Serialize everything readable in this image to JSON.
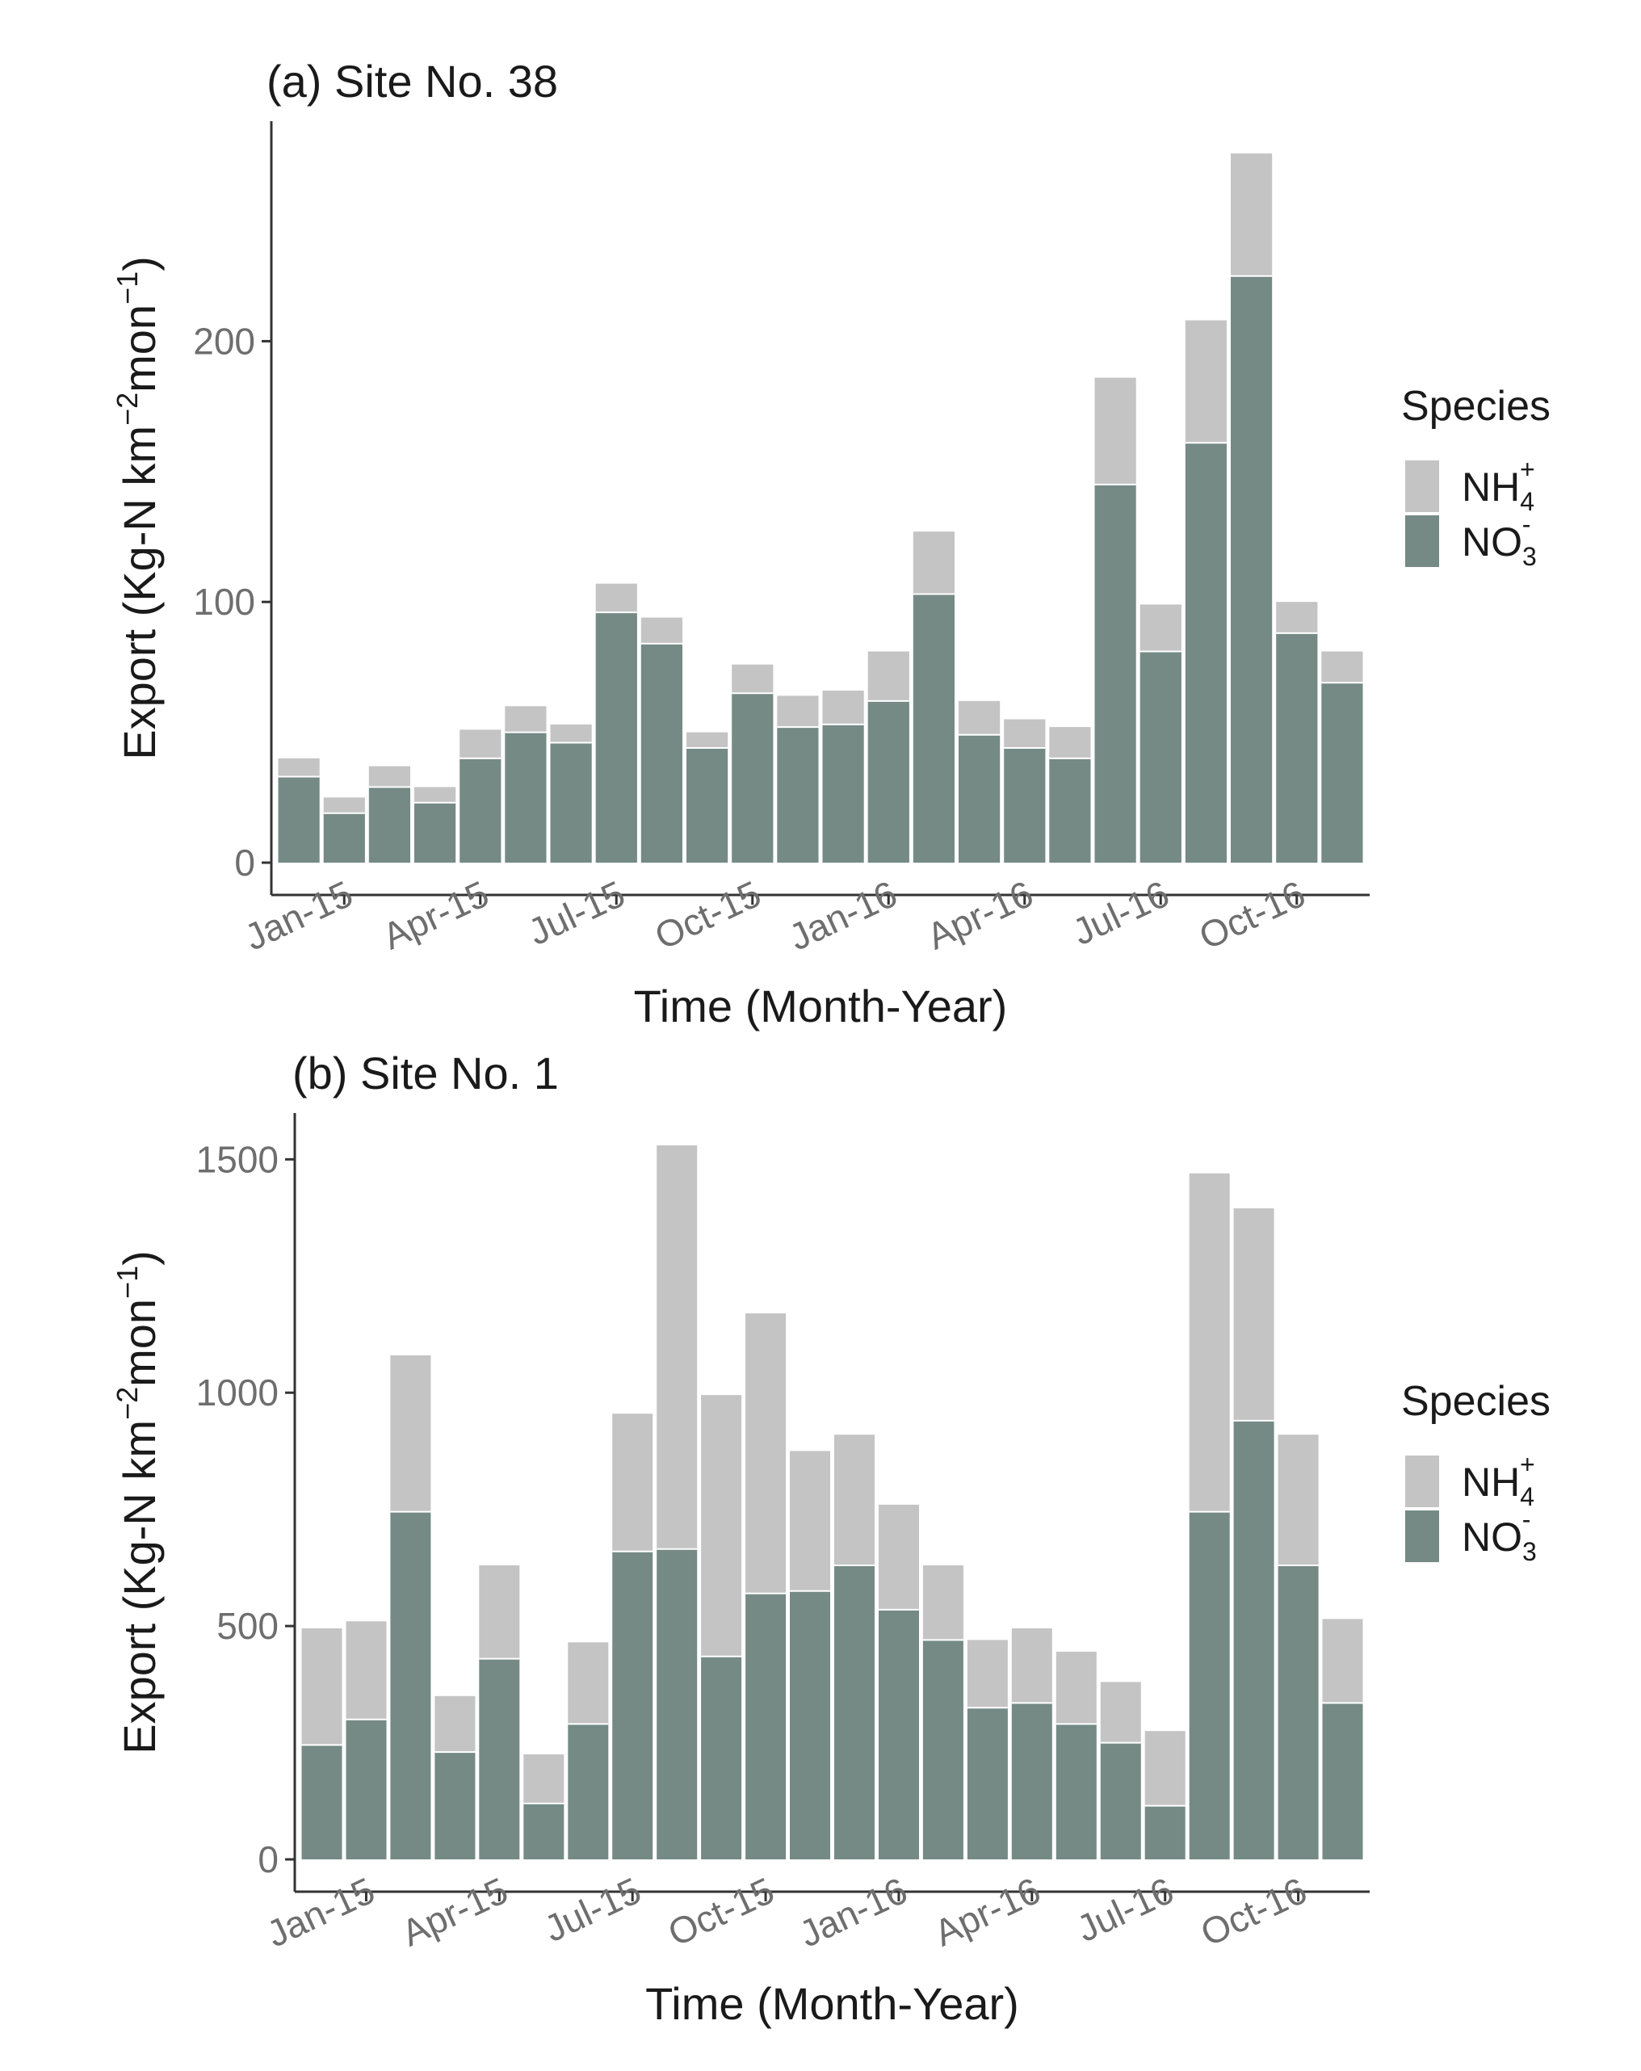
{
  "colors": {
    "nh4": "#c4c4c4",
    "no3": "#758a85",
    "axis": "#333333",
    "tick_text": "#6e6e6e",
    "title_text": "#1a1a1a"
  },
  "chart_data": [
    {
      "type": "bar",
      "stacked": true,
      "title": "(a) Site No. 38",
      "xlabel": "Time (Month-Year)",
      "ylabel": {
        "base": "Export (Kg-N km",
        "exp1": "−2",
        "mid": "mon",
        "exp2": "−1",
        "end": ")"
      },
      "ylim": [
        0,
        280
      ],
      "yticks": [
        "0",
        "100",
        "200"
      ],
      "xtick_labels": [
        "Jan-15",
        "Apr-15",
        "Jul-15",
        "Oct-15",
        "Jan-16",
        "Apr-16",
        "Jul-16",
        "Oct-16"
      ],
      "xtick_indices": [
        1,
        4,
        7,
        10,
        13,
        16,
        19,
        22
      ],
      "categories": [
        "Dec-14",
        "Jan-15",
        "Feb-15",
        "Mar-15",
        "Apr-15",
        "May-15",
        "Jun-15",
        "Jul-15",
        "Aug-15",
        "Sep-15",
        "Oct-15",
        "Nov-15",
        "Dec-15",
        "Jan-16",
        "Feb-16",
        "Mar-16",
        "Apr-16",
        "May-16",
        "Jun-16",
        "Jul-16",
        "Aug-16",
        "Sep-16",
        "Oct-16",
        "Nov-16"
      ],
      "series": [
        {
          "name": "NO3",
          "values": [
            33,
            19,
            29,
            23,
            40,
            50,
            46,
            96,
            84,
            44,
            65,
            52,
            53,
            62,
            103,
            49,
            44,
            40,
            145,
            81,
            161,
            225,
            88,
            69
          ]
        },
        {
          "name": "NH4",
          "values": [
            7,
            6,
            8,
            6,
            11,
            10,
            7,
            11,
            10,
            6,
            11,
            12,
            13,
            19,
            24,
            13,
            11,
            12,
            41,
            18,
            47,
            47,
            12,
            12
          ]
        }
      ],
      "legend": {
        "title": "Species",
        "position": "right",
        "nh4_base": "NH",
        "nh4_sub": "4",
        "nh4_sup": "+",
        "no3_base": "NO",
        "no3_sub": "3",
        "no3_sup": "-"
      }
    },
    {
      "type": "bar",
      "stacked": true,
      "title": "(b) Site No. 1",
      "xlabel": "Time (Month-Year)",
      "ylabel": {
        "base": "Export (Kg-N km",
        "exp1": "−2",
        "mid": "mon",
        "exp2": "−1",
        "end": ")"
      },
      "ylim": [
        0,
        1600
      ],
      "yticks": [
        "0",
        "500",
        "1000",
        "1500"
      ],
      "xtick_labels": [
        "Jan-15",
        "Apr-15",
        "Jul-15",
        "Oct-15",
        "Jan-16",
        "Apr-16",
        "Jul-16",
        "Oct-16"
      ],
      "xtick_indices": [
        1,
        4,
        7,
        10,
        13,
        16,
        19,
        22
      ],
      "categories": [
        "Dec-14",
        "Jan-15",
        "Feb-15",
        "Mar-15",
        "Apr-15",
        "May-15",
        "Jun-15",
        "Jul-15",
        "Aug-15",
        "Sep-15",
        "Oct-15",
        "Nov-15",
        "Dec-15",
        "Jan-16",
        "Feb-16",
        "Mar-16",
        "Apr-16",
        "May-16",
        "Jun-16",
        "Jul-16",
        "Aug-16",
        "Sep-16",
        "Oct-16",
        "Nov-16"
      ],
      "series": [
        {
          "name": "NO3",
          "values": [
            245,
            300,
            745,
            230,
            430,
            120,
            290,
            660,
            665,
            435,
            570,
            575,
            630,
            535,
            470,
            325,
            335,
            290,
            250,
            115,
            745,
            940,
            630,
            335
          ]
        },
        {
          "name": "NH4",
          "values": [
            250,
            210,
            335,
            120,
            200,
            105,
            175,
            295,
            865,
            560,
            600,
            300,
            280,
            225,
            160,
            145,
            160,
            155,
            130,
            160,
            725,
            455,
            280,
            180
          ]
        }
      ],
      "legend": {
        "title": "Species",
        "position": "right",
        "nh4_base": "NH",
        "nh4_sub": "4",
        "nh4_sup": "+",
        "no3_base": "NO",
        "no3_sub": "3",
        "no3_sup": "-"
      }
    }
  ]
}
